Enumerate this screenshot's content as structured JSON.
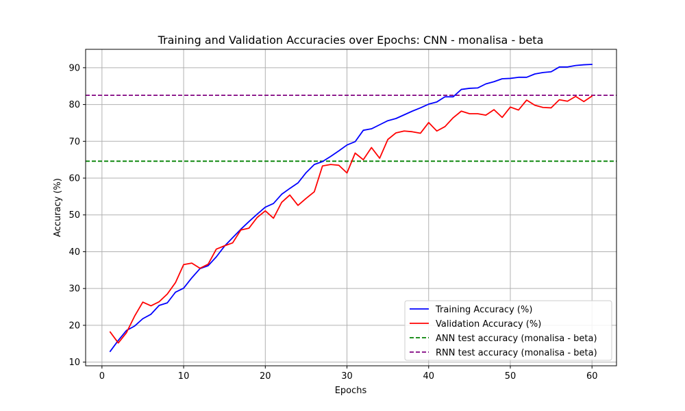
{
  "chart_data": {
    "type": "line",
    "title": "Training and Validation Accuracies over Epochs: CNN - monalisa - beta",
    "xlabel": "Epochs",
    "ylabel": "Accuracy (%)",
    "xlim": [
      -2,
      63
    ],
    "ylim": [
      9,
      95
    ],
    "xticks": [
      0,
      10,
      20,
      30,
      40,
      50,
      60
    ],
    "yticks": [
      10,
      20,
      30,
      40,
      50,
      60,
      70,
      80,
      90
    ],
    "grid": true,
    "legend_position": "lower-right",
    "x": [
      1,
      2,
      3,
      4,
      5,
      6,
      7,
      8,
      9,
      10,
      11,
      12,
      13,
      14,
      15,
      16,
      17,
      18,
      19,
      20,
      21,
      22,
      23,
      24,
      25,
      26,
      27,
      28,
      29,
      30,
      31,
      32,
      33,
      34,
      35,
      36,
      37,
      38,
      39,
      40,
      41,
      42,
      43,
      44,
      45,
      46,
      47,
      48,
      49,
      50,
      51,
      52,
      53,
      54,
      55,
      56,
      57,
      58,
      59,
      60
    ],
    "series": [
      {
        "name": "Training Accuracy (%)",
        "color": "#0000ff",
        "style": "solid",
        "values": [
          12.9,
          15.9,
          18.6,
          19.8,
          21.8,
          23.0,
          25.4,
          26.1,
          29.0,
          30.1,
          32.9,
          35.4,
          36.2,
          38.6,
          41.5,
          43.8,
          46.1,
          48.2,
          50.2,
          52.1,
          53.1,
          55.6,
          57.2,
          58.7,
          61.5,
          63.7,
          64.5,
          65.9,
          67.4,
          69.0,
          69.9,
          73.0,
          73.4,
          74.5,
          75.6,
          76.2,
          77.2,
          78.2,
          79.1,
          80.1,
          80.7,
          82.1,
          82.1,
          84.1,
          84.4,
          84.5,
          85.6,
          86.2,
          87.0,
          87.1,
          87.4,
          87.4,
          88.3,
          88.7,
          88.9,
          90.2,
          90.2,
          90.6,
          90.8,
          90.9
        ]
      },
      {
        "name": "Validation Accuracy (%)",
        "color": "#ff0000",
        "style": "solid",
        "values": [
          18.2,
          15.2,
          18.0,
          22.5,
          26.3,
          25.3,
          26.4,
          28.5,
          31.6,
          36.5,
          36.9,
          35.5,
          36.6,
          40.7,
          41.6,
          42.4,
          45.9,
          46.4,
          49.3,
          51.1,
          49.1,
          53.4,
          55.4,
          52.6,
          54.5,
          56.3,
          63.3,
          63.7,
          63.5,
          61.4,
          66.8,
          65.0,
          68.3,
          65.4,
          70.5,
          72.3,
          72.8,
          72.6,
          72.2,
          75.1,
          72.8,
          74.0,
          76.4,
          78.2,
          77.5,
          77.5,
          77.1,
          78.6,
          76.5,
          79.3,
          78.5,
          81.2,
          79.8,
          79.2,
          79.1,
          81.3,
          80.9,
          82.2,
          80.8,
          82.3
        ]
      },
      {
        "name": "ANN test accuracy (monalisa - beta)",
        "color": "#008000",
        "style": "dashed",
        "hline": 64.6
      },
      {
        "name": "RNN test accuracy (monalisa - beta)",
        "color": "#800080",
        "style": "dashed",
        "hline": 82.5
      }
    ]
  }
}
